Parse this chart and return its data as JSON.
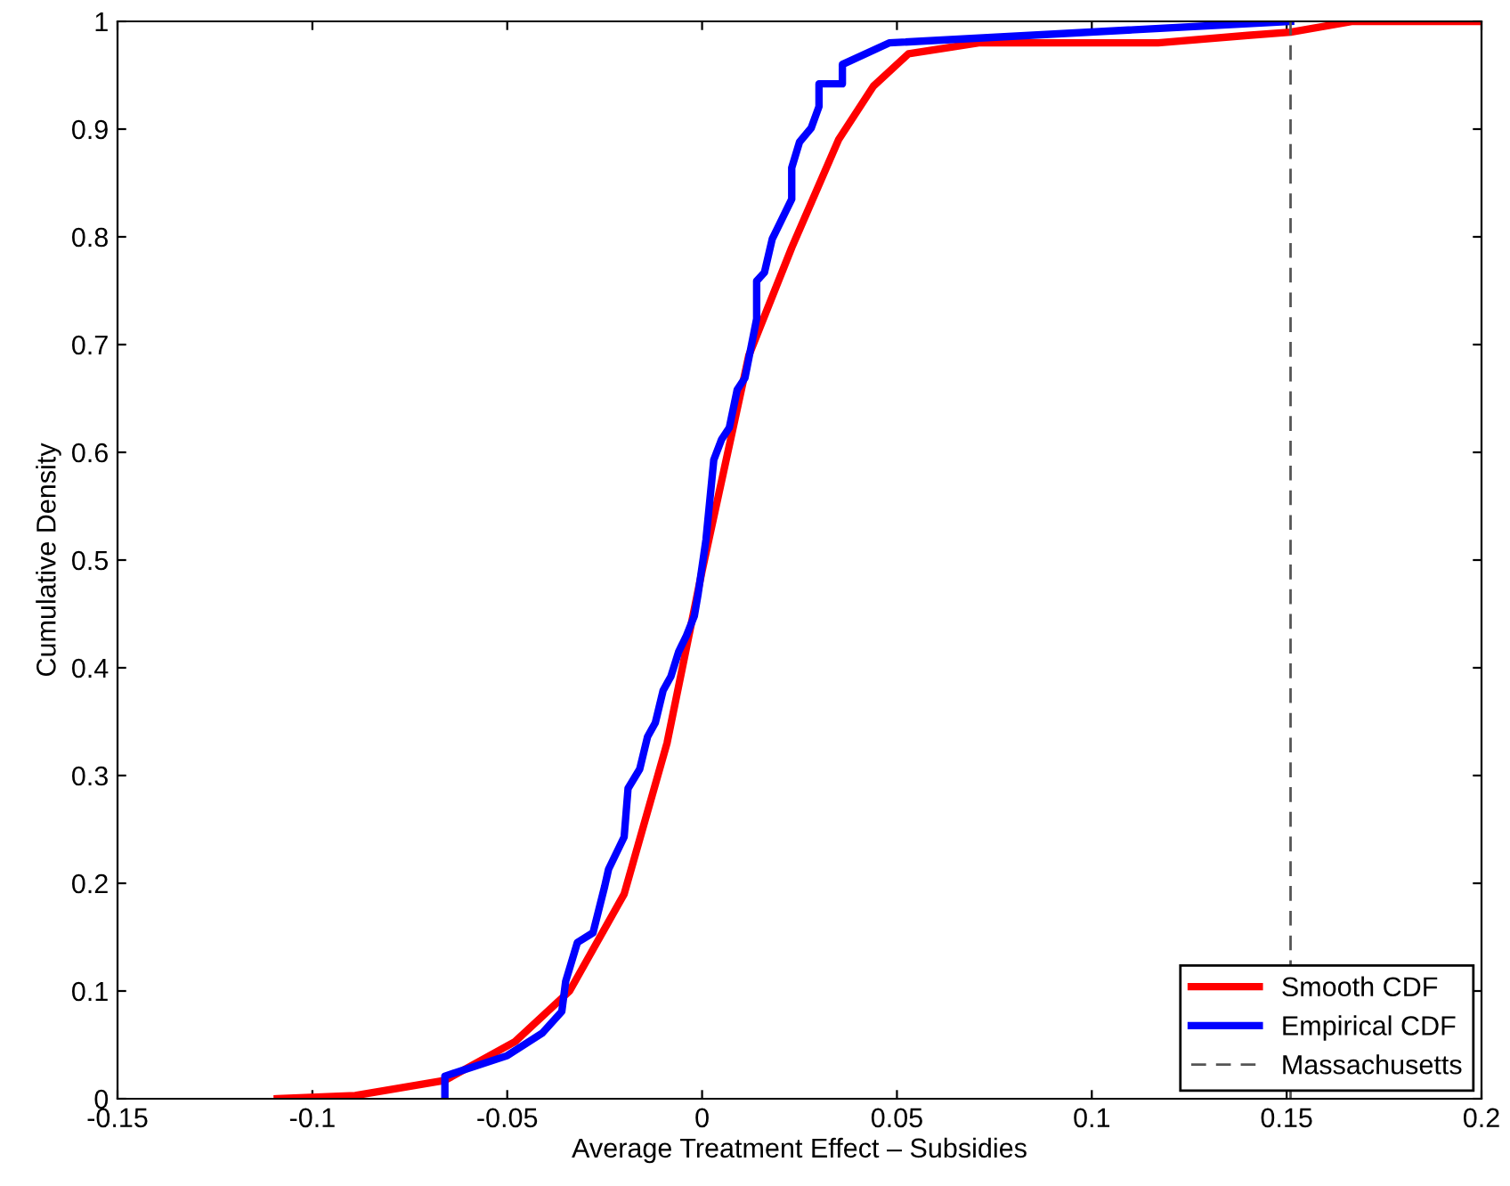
{
  "chart_data": {
    "type": "line",
    "xlabel": "Average Treatment Effect – Subsidies",
    "ylabel": "Cumulative Density",
    "xlim": [
      -0.15,
      0.2
    ],
    "ylim": [
      0,
      1
    ],
    "xticks": [
      -0.15,
      -0.1,
      -0.05,
      0,
      0.05,
      0.1,
      0.15,
      0.2
    ],
    "yticks": [
      0,
      0.1,
      0.2,
      0.3,
      0.4,
      0.5,
      0.6,
      0.7,
      0.8,
      0.9,
      1
    ],
    "grid": false,
    "legend": "bottom right",
    "marker": "none",
    "line_style": "solid",
    "series": [
      {
        "name": "Smooth CDF",
        "color": "#ff0000",
        "x": [
          -0.109,
          -0.089,
          -0.066,
          -0.048,
          -0.034,
          -0.02,
          -0.009,
          0.0,
          0.012,
          0.023,
          0.035,
          0.044,
          0.053,
          0.071,
          0.117,
          0.14,
          0.151,
          0.167,
          0.199
        ],
        "values": [
          0,
          0.003,
          0.017,
          0.053,
          0.1,
          0.19,
          0.33,
          0.49,
          0.69,
          0.79,
          0.89,
          0.94,
          0.97,
          0.98,
          0.98,
          0.987,
          0.99,
          1.0,
          1.0
        ]
      },
      {
        "name": "Empirical CDF",
        "color": "#0000ff",
        "x": [
          -0.066,
          -0.066,
          -0.05,
          -0.041,
          -0.036,
          -0.035,
          -0.032,
          -0.028,
          -0.025,
          -0.024,
          -0.02,
          -0.019,
          -0.016,
          -0.014,
          -0.012,
          -0.01,
          -0.008,
          -0.006,
          -0.004,
          -0.002,
          -0.001,
          0.001,
          0.003,
          0.005,
          0.007,
          0.009,
          0.011,
          0.014,
          0.014,
          0.016,
          0.018,
          0.023,
          0.023,
          0.025,
          0.028,
          0.03,
          0.03,
          0.036,
          0.036,
          0.048,
          0.151
        ],
        "values": [
          0,
          0.021,
          0.04,
          0.061,
          0.081,
          0.109,
          0.145,
          0.154,
          0.197,
          0.213,
          0.243,
          0.288,
          0.306,
          0.336,
          0.349,
          0.379,
          0.392,
          0.415,
          0.43,
          0.448,
          0.469,
          0.519,
          0.593,
          0.612,
          0.623,
          0.658,
          0.669,
          0.724,
          0.759,
          0.767,
          0.798,
          0.835,
          0.864,
          0.888,
          0.901,
          0.921,
          0.942,
          0.942,
          0.96,
          0.98,
          1.0
        ]
      }
    ],
    "ref_lines": [
      {
        "axis": "x",
        "value": 0.151,
        "label": "Massachusetts",
        "color": "#555555",
        "line_style": "dashed"
      }
    ]
  }
}
